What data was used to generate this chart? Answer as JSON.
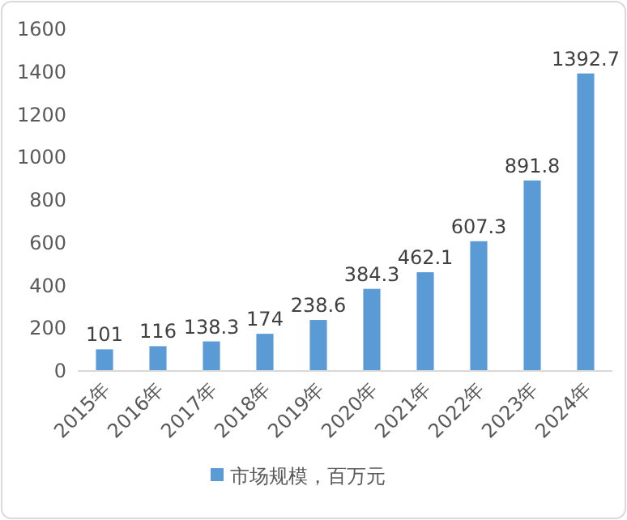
{
  "chart_data": {
    "type": "bar",
    "categories": [
      "2015年",
      "2016年",
      "2017年",
      "2018年",
      "2019年",
      "2020年",
      "2021年",
      "2022年",
      "2023年",
      "2024年"
    ],
    "series": [
      {
        "name": "市场规模，百万元",
        "color": "#5b9bd5",
        "values": [
          101,
          116,
          138.3,
          174,
          238.6,
          384.3,
          462.1,
          607.3,
          891.8,
          1392.7
        ]
      }
    ],
    "ylim": [
      0,
      1600
    ],
    "yticks": [
      0,
      200,
      400,
      600,
      800,
      1000,
      1200,
      1400,
      1600
    ],
    "data_labels": true,
    "legend": "bottom",
    "grid": false
  }
}
